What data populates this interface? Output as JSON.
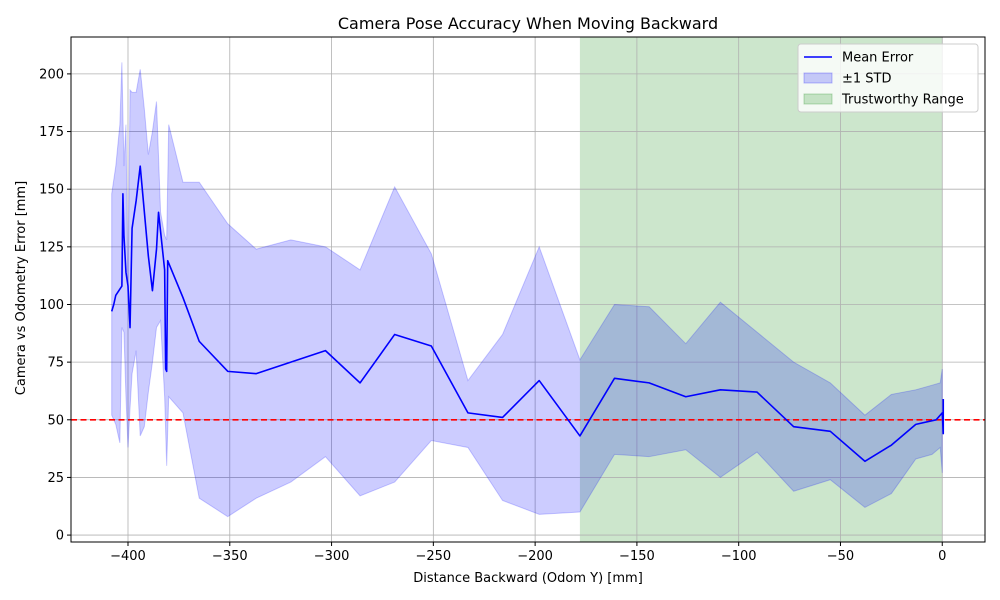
{
  "chart_data": {
    "type": "line",
    "title": "Camera Pose Accuracy When Moving Backward",
    "xlabel": "Distance Backward (Odom Y) [mm]",
    "ylabel": "Camera vs Odometry Error [mm]",
    "xlim": [
      -428,
      21
    ],
    "ylim": [
      -3,
      216
    ],
    "xticks": [
      -400,
      -350,
      -300,
      -250,
      -200,
      -150,
      -100,
      -50,
      0
    ],
    "yticks": [
      0,
      25,
      50,
      75,
      100,
      125,
      150,
      175,
      200
    ],
    "xtick_labels": [
      "−400",
      "−350",
      "−300",
      "−250",
      "−200",
      "−150",
      "−100",
      "−50",
      "0"
    ],
    "ytick_labels": [
      "0",
      "25",
      "50",
      "75",
      "100",
      "125",
      "150",
      "175",
      "200"
    ],
    "grid": true,
    "legend_position": "upper right",
    "reference_line": {
      "y": 50,
      "color": "#ff0000",
      "style": "dashed"
    },
    "trustworthy_range": {
      "x_start": -178,
      "x_end": 0,
      "color": "#008000"
    },
    "series": [
      {
        "name": "Mean Error",
        "color": "#0000ff",
        "x": [
          -408,
          -407,
          -406,
          -403,
          -402.5,
          -402,
          -401,
          -400,
          -399,
          -398,
          -396,
          -394,
          -390,
          -388,
          -386,
          -385,
          -382,
          -381.5,
          -381,
          -380.5,
          -373,
          -365,
          -351,
          -337,
          -320,
          -303,
          -286,
          -269,
          -251,
          -233,
          -216,
          -198,
          -178,
          -161,
          -144,
          -126,
          -109,
          -91,
          -73,
          -55,
          -38,
          -25,
          -13,
          -3,
          0,
          0.5,
          0.5
        ],
        "y": [
          97,
          100,
          104,
          108,
          148,
          130,
          114,
          108,
          90,
          133,
          145,
          160,
          121,
          106,
          124,
          140,
          115,
          72,
          71,
          119,
          103,
          84,
          71,
          70,
          75,
          80,
          66,
          87,
          82,
          53,
          51,
          67,
          43,
          68,
          66,
          60,
          63,
          62,
          47,
          45,
          32,
          39,
          48,
          50,
          53,
          44,
          59
        ]
      },
      {
        "name": "±1 STD",
        "color": "#0000ff",
        "x": [
          -408,
          -406,
          -404,
          -403,
          -402,
          -401,
          -400,
          -399,
          -398,
          -396,
          -394,
          -392,
          -390,
          -388,
          -386,
          -384,
          -382,
          -381,
          -380,
          -373,
          -365,
          -351,
          -337,
          -320,
          -303,
          -286,
          -269,
          -251,
          -233,
          -216,
          -198,
          -178,
          -161,
          -144,
          -126,
          -109,
          -91,
          -73,
          -55,
          -38,
          -25,
          -13,
          -5,
          -1,
          0
        ],
        "upper": [
          148,
          160,
          178,
          205,
          160,
          178,
          100,
          193,
          192,
          192,
          202,
          185,
          165,
          175,
          188,
          140,
          130,
          128,
          178,
          153,
          153,
          135,
          124,
          128,
          125,
          115,
          151,
          122,
          67,
          87,
          125,
          76,
          100,
          99,
          83,
          101,
          88,
          75,
          66,
          52,
          61,
          63,
          65,
          66,
          72
        ],
        "lower": [
          52,
          48,
          40,
          90,
          88,
          60,
          38,
          55,
          70,
          80,
          43,
          47,
          62,
          75,
          90,
          93,
          60,
          30,
          60,
          53,
          16,
          8,
          16,
          23,
          34,
          17,
          23,
          41,
          38,
          15,
          9,
          10,
          35,
          34,
          37,
          25,
          36,
          19,
          24,
          12,
          18,
          33,
          35,
          38,
          27
        ]
      }
    ],
    "legend": [
      {
        "label": "Mean Error",
        "kind": "line",
        "color": "#0000ff"
      },
      {
        "label": "±1 STD",
        "kind": "patch",
        "color": "#0000ff"
      },
      {
        "label": "Trustworthy Range",
        "kind": "patch",
        "color": "#008000"
      }
    ]
  }
}
